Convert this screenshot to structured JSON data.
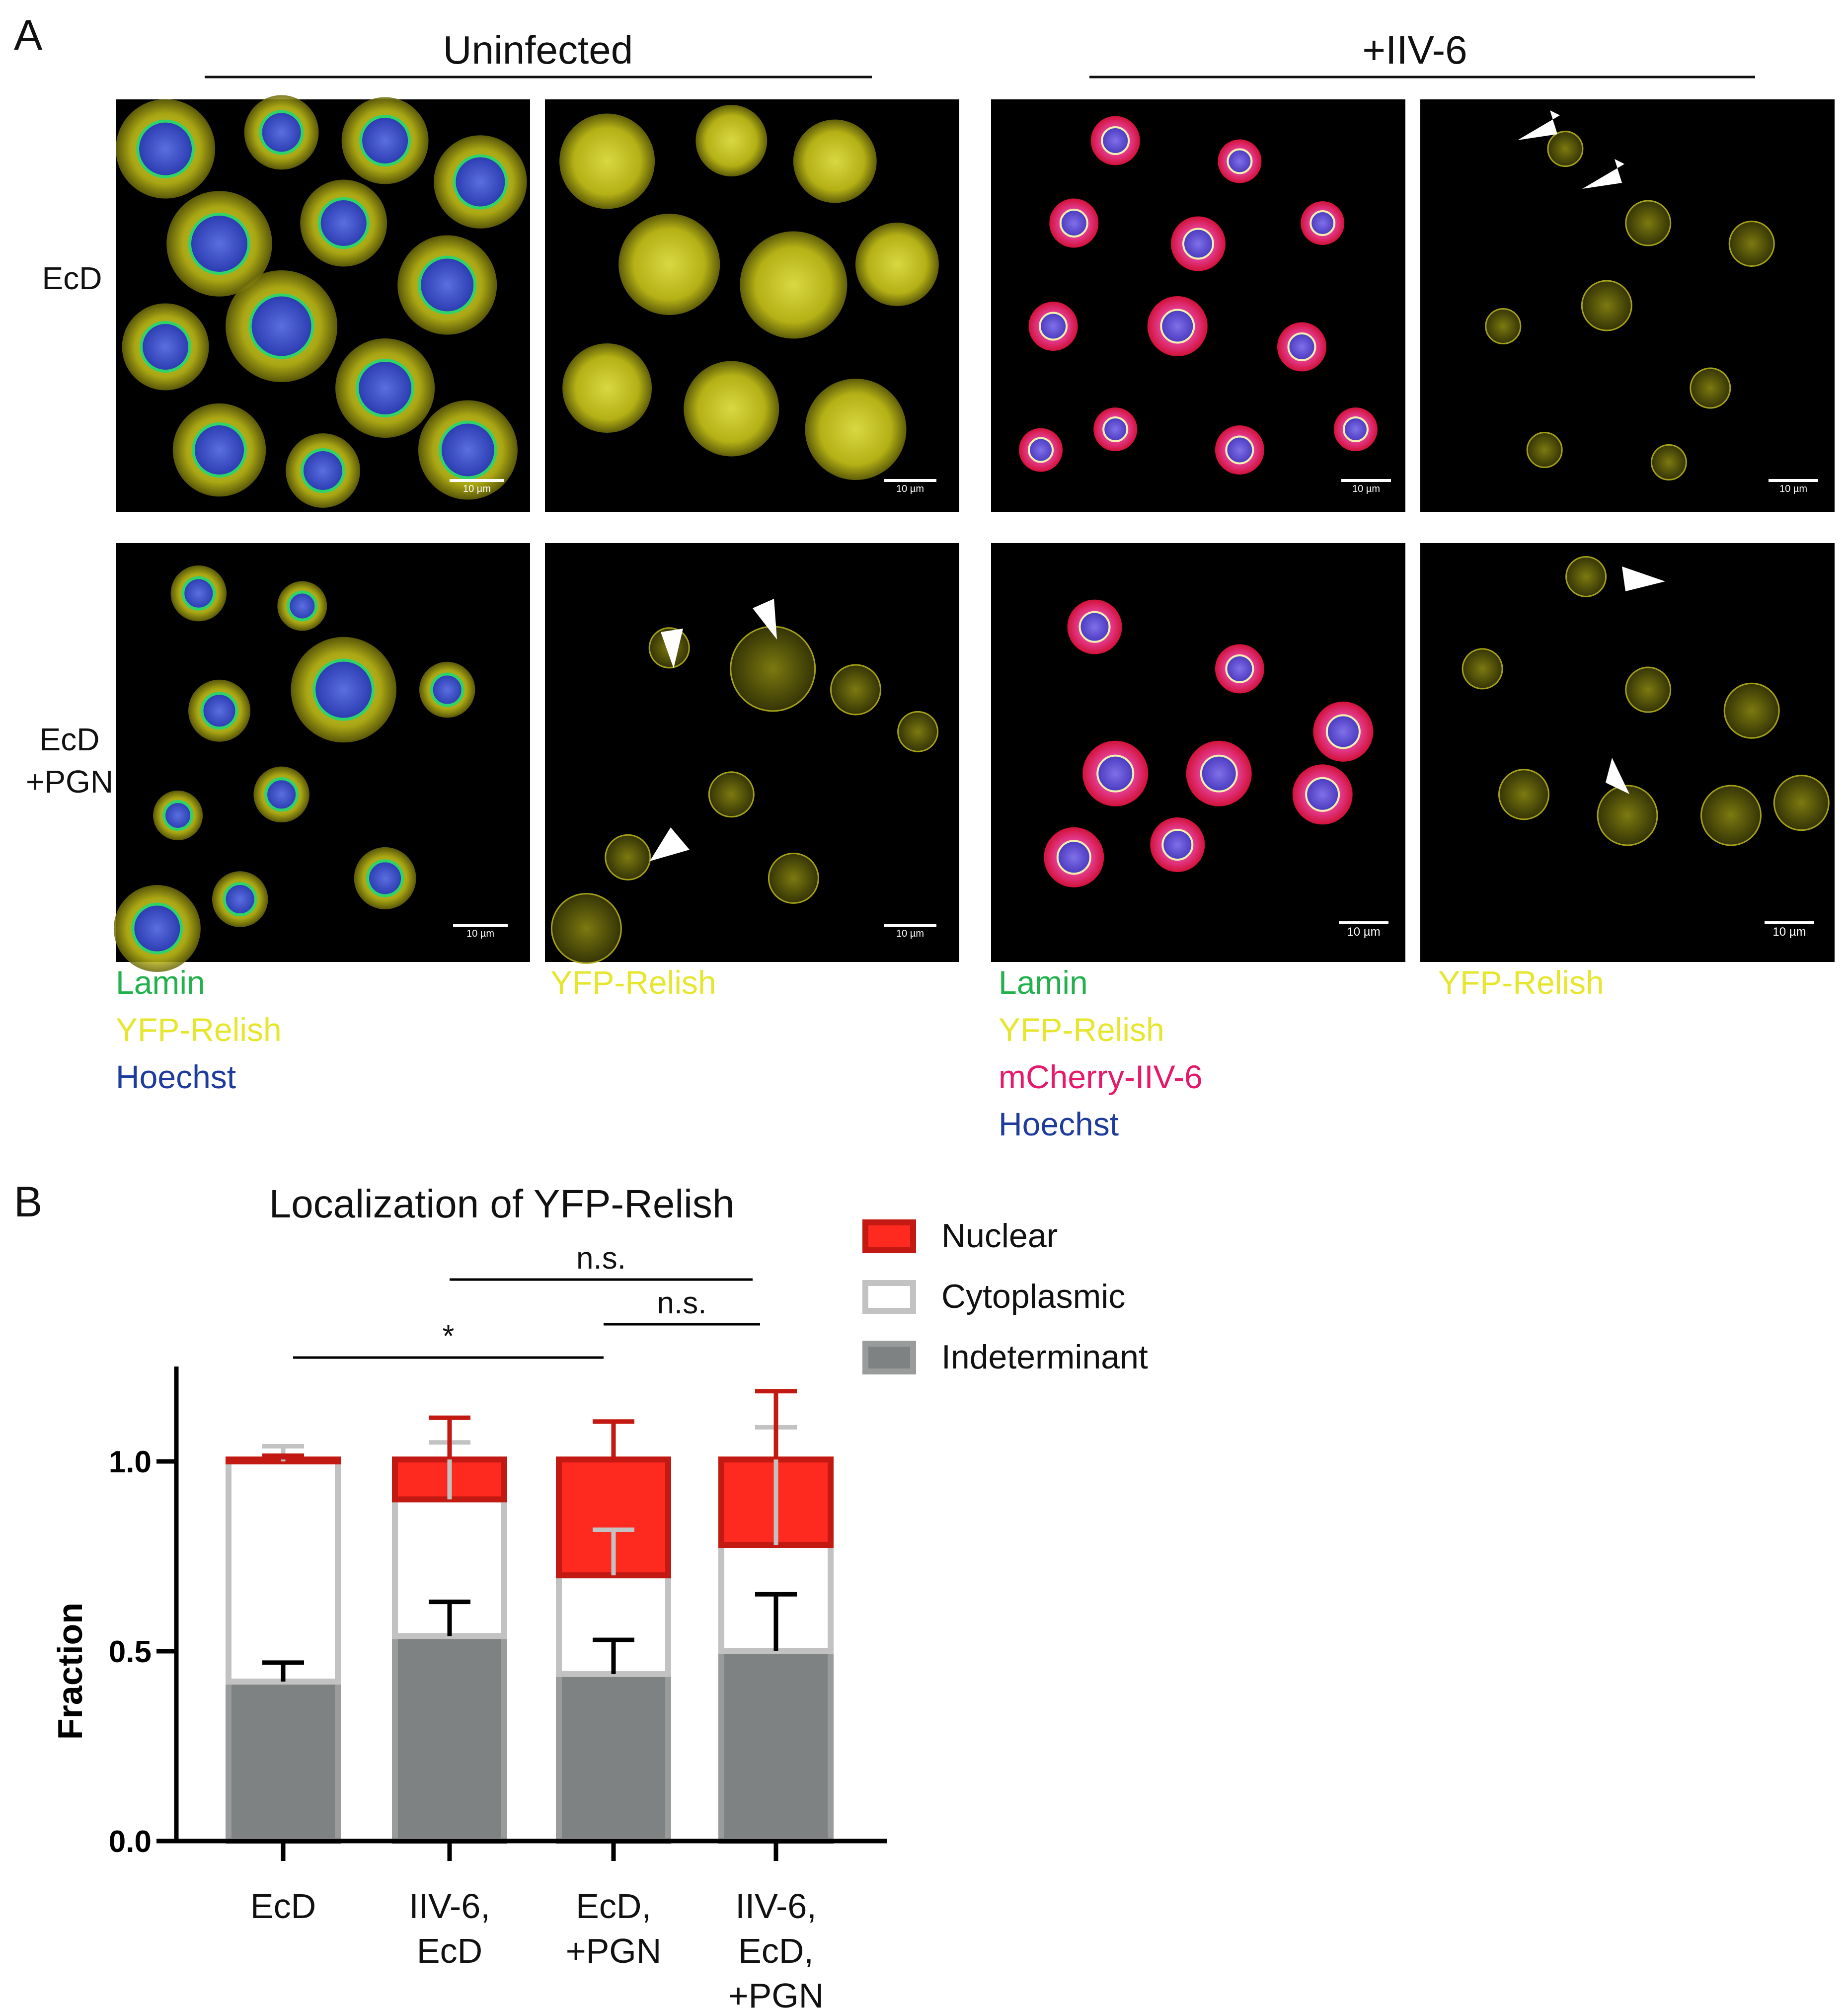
{
  "figure": {
    "panel_a": {
      "letter": "A",
      "group_uninfected": "Uninfected",
      "group_infected": "+IIV-6",
      "row_labels": [
        [
          "EcD"
        ],
        [
          "EcD",
          "+PGN"
        ]
      ],
      "scale_bar_label": "10 µm",
      "channel_legends": [
        [
          {
            "text": "Lamin",
            "color": "#22b14c"
          },
          {
            "text": "YFP-Relish",
            "color": "#e6e62e"
          },
          {
            "text": "Hoechst",
            "color": "#1f3c9c"
          }
        ],
        [
          {
            "text": "YFP-Relish",
            "color": "#e6e62e"
          }
        ],
        [
          {
            "text": "Lamin",
            "color": "#22b14c"
          },
          {
            "text": "YFP-Relish",
            "color": "#e6e62e"
          },
          {
            "text": "mCherry-IIV-6",
            "color": "#e8196a"
          },
          {
            "text": "Hoechst",
            "color": "#1f3c9c"
          }
        ],
        [
          {
            "text": "YFP-Relish",
            "color": "#e6e62e"
          }
        ]
      ]
    },
    "panel_b": {
      "letter": "B",
      "significance": [
        {
          "from": 1,
          "to": 3,
          "label": "n.s."
        },
        {
          "from": 2,
          "to": 3,
          "label": "n.s."
        },
        {
          "from": 0,
          "to": 2,
          "label": "*"
        }
      ]
    }
  },
  "chart_data": {
    "type": "bar",
    "stacked": true,
    "title": "Localization of YFP-Relish",
    "xlabel": "",
    "ylabel": "Fraction",
    "ylim": [
      0,
      1.25
    ],
    "yticks": [
      "0.0",
      "0.5",
      "1.0"
    ],
    "categories": [
      [
        "EcD"
      ],
      [
        "IIV-6,",
        "EcD"
      ],
      [
        "EcD,",
        "+PGN"
      ],
      [
        "IIV-6,",
        "EcD,",
        "+PGN"
      ]
    ],
    "series": [
      {
        "name": "Indeterminant",
        "fill": "#7f8282",
        "edge": "#9a9c9c",
        "values": [
          0.42,
          0.54,
          0.44,
          0.5
        ],
        "error": [
          0.05,
          0.09,
          0.09,
          0.15
        ],
        "error_color": "#000000"
      },
      {
        "name": "Cytoplasmic",
        "fill": "#ffffff",
        "edge": "#c2c2c2",
        "values": [
          0.58,
          0.36,
          0.26,
          0.28
        ],
        "error": [
          0.04,
          0.15,
          0.12,
          0.31
        ],
        "error_color": "#c2c2c2"
      },
      {
        "name": "Nuclear",
        "fill": "#ff2a1f",
        "edge": "#c21a12",
        "values": [
          0.005,
          0.105,
          0.305,
          0.225
        ],
        "error": [
          0.01,
          0.11,
          0.1,
          0.18
        ],
        "error_color": "#c21a12"
      }
    ],
    "legend_position": "right",
    "grid": false
  }
}
